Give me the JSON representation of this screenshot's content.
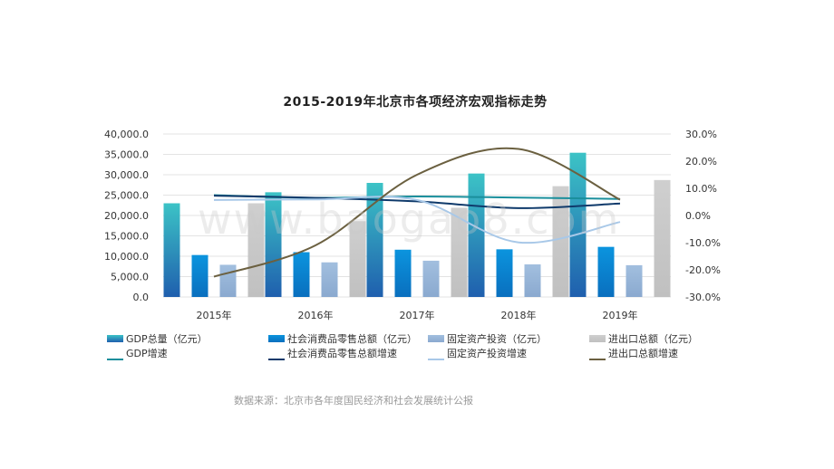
{
  "chart_data": {
    "type": "bar",
    "title": "2015-2019年北京市各项经济宏观指标走势",
    "categories": [
      "2015年",
      "2016年",
      "2017年",
      "2018年",
      "2019年"
    ],
    "y_left_ticks": [
      "40,000.0",
      "35,000.0",
      "30,000.0",
      "25,000.0",
      "20,000.0",
      "15,000.0",
      "10,000.0",
      "5,000.0",
      "0.0"
    ],
    "y_right_ticks": [
      "30.0%",
      "20.0%",
      "10.0%",
      "0.0%",
      "-10.0%",
      "-20.0%",
      "-30.0%"
    ],
    "ylim_left": [
      0,
      40000
    ],
    "ylim_right": [
      -30,
      30
    ],
    "bar_series": [
      {
        "name": "GDP总量（亿元）",
        "values": [
          23000,
          25700,
          28000,
          30300,
          35400
        ],
        "color": "#2aa3b0"
      },
      {
        "name": "社会消费品零售总额（亿元）",
        "values": [
          10300,
          11000,
          11600,
          11700,
          12300
        ],
        "color": "#0f7fcc"
      },
      {
        "name": "固定资产投资（亿元）",
        "values": [
          7900,
          8500,
          8900,
          8000,
          7800
        ],
        "color": "#93b3d6"
      },
      {
        "name": "进出口总额（亿元）",
        "values": [
          23000,
          18600,
          21900,
          27200,
          28700
        ],
        "color": "#c6c6c6"
      }
    ],
    "line_series": [
      {
        "name": "GDP增速",
        "values": [
          7.5,
          6.5,
          7.0,
          6.6,
          6.1
        ],
        "color": "#1a8f9c"
      },
      {
        "name": "社会消费品零售总额增速",
        "values": [
          7.3,
          6.5,
          5.2,
          2.7,
          4.4
        ],
        "color": "#0f3a6b"
      },
      {
        "name": "固定资产投资增速",
        "values": [
          5.7,
          5.9,
          5.7,
          -9.9,
          -2.4
        ],
        "color": "#a8c8e8"
      },
      {
        "name": "进出口总额增速",
        "values": [
          -22.5,
          -11.0,
          15.0,
          24.5,
          5.8
        ],
        "color": "#6b6040"
      }
    ]
  },
  "source_text": "数据来源：北京市各年度国民经济和社会发展统计公报",
  "watermark_text": "www.baogao8.com"
}
